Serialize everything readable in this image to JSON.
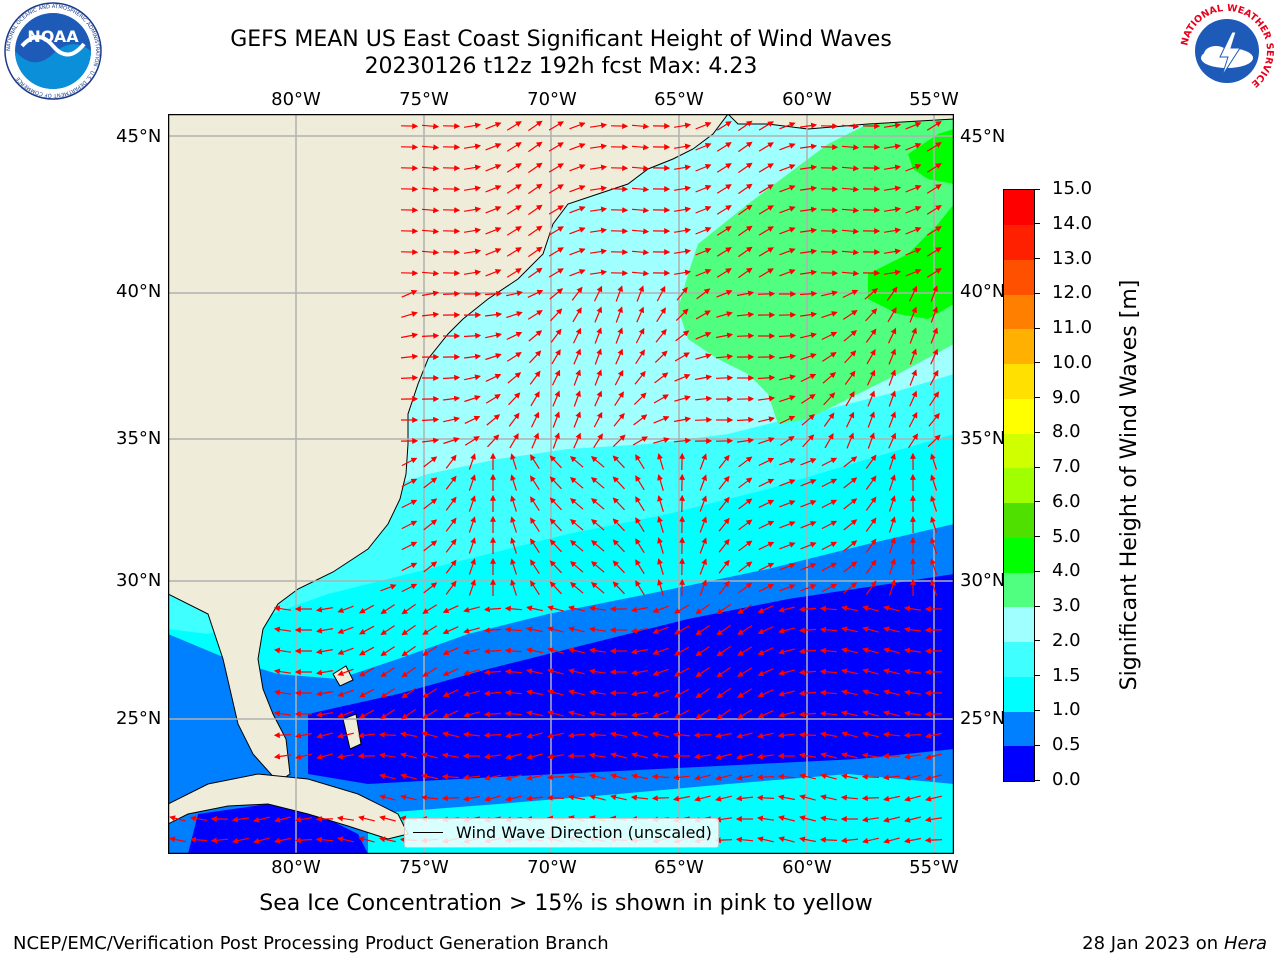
{
  "title": {
    "line1": "GEFS MEAN US East Coast Significant Height of Wind Waves",
    "line2": "20230126 t12z 192h fcst   Max: 4.23"
  },
  "map": {
    "lon_ticks": [
      "80°W",
      "75°W",
      "70°W",
      "65°W",
      "60°W",
      "55°W"
    ],
    "lat_ticks": [
      "45°N",
      "40°N",
      "35°N",
      "30°N",
      "25°N"
    ],
    "legend_label": "Wind Wave Direction (unscaled)",
    "colors": {
      "land": "#efedd9",
      "arrow": "#ff0000",
      "grid": "#b0b0b0"
    }
  },
  "colorbar": {
    "label": "Significant Height of Wind Waves [m]",
    "ticks": [
      "0.0",
      "0.5",
      "1.0",
      "1.5",
      "2.0",
      "3.0",
      "4.0",
      "5.0",
      "6.0",
      "7.0",
      "8.0",
      "9.0",
      "10.0",
      "11.0",
      "12.0",
      "13.0",
      "14.0",
      "15.0"
    ],
    "colors": [
      "#0000ff",
      "#0080ff",
      "#00ffff",
      "#40ffff",
      "#a0ffff",
      "#50ff80",
      "#00ff00",
      "#50e000",
      "#a0ff00",
      "#d0ff00",
      "#ffff00",
      "#ffe000",
      "#ffb000",
      "#ff8000",
      "#ff5000",
      "#ff2000",
      "#ff0000"
    ]
  },
  "notes": {
    "sea_ice": "Sea Ice Concentration > 15% is shown in pink to yellow"
  },
  "footer": {
    "left": "NCEP/EMC/Verification Post Processing Product Generation Branch",
    "right_prefix": "28 Jan 2023 on ",
    "right_host": "Hera"
  },
  "logos": {
    "noaa_text": "NOAA",
    "noaa_ring": "NATIONAL OCEANIC AND ATMOSPHERIC ADMINISTRATION · U.S. DEPARTMENT OF COMMERCE",
    "nws_ring": "NATIONAL WEATHER SERVICE"
  }
}
